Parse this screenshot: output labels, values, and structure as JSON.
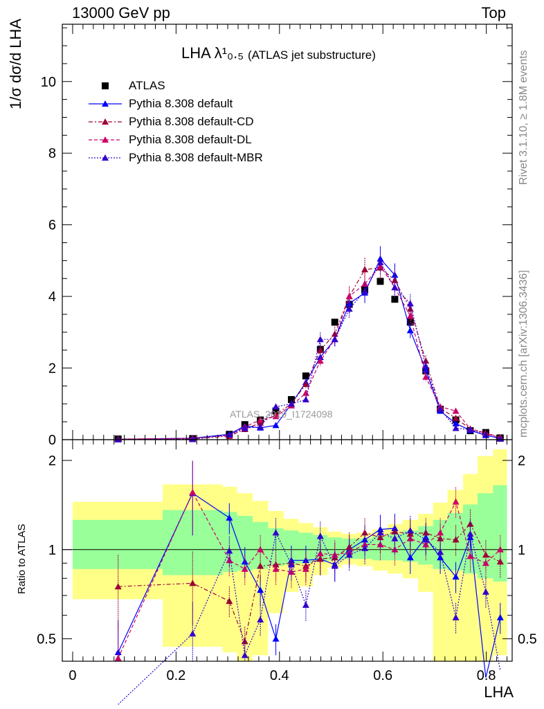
{
  "header": {
    "left": "13000 GeV pp",
    "right": "Top"
  },
  "side_text": {
    "rivet": "Rivet 3.1.10, ≥ 1.8M events",
    "mcplots": "mcplots.cern.ch [arXiv:1306.3436]"
  },
  "watermark": "ATLAS_2019_I1724098",
  "y_axis_label": "1/σ dσ/d LHA",
  "ratio_label": "Ratio to ATLAS",
  "title": {
    "main": "LHA λ¹₀.₅",
    "sub": "(ATLAS jet substructure)"
  },
  "colors": {
    "atlas": "#000000",
    "default": "#0000ff",
    "cd": "#990033",
    "dl": "#cc0066",
    "mbr": "#3300cc",
    "band_inner": "#99ff99",
    "band_outer": "#ffff88"
  },
  "chart_data": {
    "type": "scatter",
    "xlabel": "LHA",
    "x_range": [
      -0.02,
      0.85
    ],
    "main_ylim": [
      0,
      11.6
    ],
    "ratio_ylim": [
      0.42,
      2.35
    ],
    "ratio_yscale": "log",
    "x_ticks": [
      "0",
      "0.2",
      "0.4",
      "0.6",
      "0.8"
    ],
    "main_y_ticks": [
      "0",
      "2",
      "4",
      "6",
      "8",
      "10"
    ],
    "ratio_y_ticks": [
      "0.5",
      "1",
      "2"
    ],
    "legend_position": "top-left",
    "x": [
      0.088,
      0.232,
      0.303,
      0.333,
      0.363,
      0.393,
      0.423,
      0.451,
      0.479,
      0.507,
      0.535,
      0.565,
      0.595,
      0.623,
      0.653,
      0.683,
      0.711,
      0.741,
      0.769,
      0.799,
      0.827
    ],
    "series": [
      {
        "name": "ATLAS",
        "style": "square",
        "values": [
          0.02,
          0.03,
          0.15,
          0.42,
          0.55,
          0.8,
          1.12,
          1.78,
          2.52,
          3.28,
          3.78,
          4.18,
          4.42,
          3.92,
          3.28,
          1.92,
          0.85,
          0.55,
          0.25,
          0.2,
          0.05
        ],
        "ratio": [
          1,
          1,
          1,
          1,
          1,
          1,
          1,
          1,
          1,
          1,
          1,
          1,
          1,
          1,
          1,
          1,
          1,
          1,
          1,
          1,
          1
        ]
      },
      {
        "name": "Pythia 8.308 default",
        "style": "solid",
        "values": [
          0.01,
          0.04,
          0.15,
          0.38,
          0.33,
          0.4,
          1.0,
          1.6,
          2.3,
          2.8,
          3.8,
          4.1,
          5.05,
          4.6,
          3.05,
          1.95,
          0.8,
          0.45,
          0.26,
          0.12,
          0.04
        ],
        "ratio": [
          0.45,
          1.55,
          1.28,
          0.91,
          0.73,
          0.5,
          0.92,
          0.92,
          0.93,
          0.89,
          1.0,
          1.08,
          1.17,
          1.18,
          0.94,
          1.1,
          0.94,
          0.81,
          1.1,
          0.37,
          0.59
        ]
      },
      {
        "name": "Pythia 8.308 default-CD",
        "style": "dashdot",
        "values": [
          0.02,
          0.02,
          0.1,
          0.29,
          0.47,
          0.7,
          1.0,
          1.55,
          2.5,
          2.95,
          4.0,
          4.75,
          4.8,
          4.45,
          3.65,
          2.2,
          0.88,
          0.6,
          0.3,
          0.18,
          0.05
        ],
        "ratio": [
          0.75,
          0.77,
          0.67,
          0.49,
          0.88,
          0.89,
          0.9,
          0.88,
          0.93,
          0.94,
          1.02,
          1.14,
          1.1,
          1.15,
          1.13,
          1.14,
          1.09,
          1.08,
          1.22,
          0.96,
          0.91
        ]
      },
      {
        "name": "Pythia 8.308 default-DL",
        "style": "dashed",
        "values": [
          0.01,
          0.04,
          0.12,
          0.36,
          0.55,
          0.65,
          0.95,
          1.3,
          2.2,
          2.8,
          4.0,
          4.35,
          4.85,
          4.25,
          3.45,
          1.75,
          0.92,
          0.8,
          0.3,
          0.19,
          0.06
        ],
        "ratio": [
          0.43,
          1.56,
          0.92,
          0.86,
          1.0,
          0.86,
          0.84,
          0.86,
          0.97,
          0.96,
          0.98,
          1.04,
          1.04,
          1.0,
          1.09,
          1.04,
          1.14,
          1.45,
          0.95,
          0.9,
          1.0
        ]
      },
      {
        "name": "Pythia 8.308 default-MBR",
        "style": "dotted",
        "values": [
          0.0,
          0.01,
          0.14,
          0.32,
          0.36,
          0.92,
          1.0,
          1.12,
          2.8,
          2.8,
          3.65,
          4.15,
          4.95,
          4.25,
          3.8,
          2.05,
          0.85,
          0.32,
          0.28,
          0.14,
          0.02
        ],
        "ratio": [
          0.22,
          0.52,
          0.99,
          0.44,
          0.58,
          1.14,
          0.89,
          0.65,
          1.11,
          0.88,
          0.96,
          1.01,
          1.14,
          1.09,
          1.16,
          1.08,
          0.98,
          0.59,
          1.13,
          0.72,
          0.39
        ]
      }
    ],
    "error_bands": {
      "x_edges": [
        0.0,
        0.174,
        0.29,
        0.318,
        0.348,
        0.378,
        0.408,
        0.437,
        0.465,
        0.493,
        0.521,
        0.549,
        0.58,
        0.609,
        0.638,
        0.668,
        0.697,
        0.725,
        0.755,
        0.783,
        0.813,
        0.84
      ],
      "inner": [
        [
          0.86,
          1.26
        ],
        [
          0.82,
          1.36
        ],
        [
          0.84,
          1.34
        ],
        [
          0.85,
          1.3
        ],
        [
          0.86,
          1.24
        ],
        [
          0.88,
          1.18
        ],
        [
          0.89,
          1.16
        ],
        [
          0.9,
          1.14
        ],
        [
          0.91,
          1.12
        ],
        [
          0.92,
          1.1
        ],
        [
          0.93,
          1.09
        ],
        [
          0.93,
          1.09
        ],
        [
          0.92,
          1.11
        ],
        [
          0.92,
          1.13
        ],
        [
          0.91,
          1.16
        ],
        [
          0.89,
          1.2
        ],
        [
          0.86,
          1.26
        ],
        [
          0.85,
          1.33
        ],
        [
          0.83,
          1.42
        ],
        [
          0.8,
          1.55
        ],
        [
          0.78,
          1.65
        ]
      ],
      "outer": [
        [
          0.68,
          1.45
        ],
        [
          0.47,
          1.66
        ],
        [
          0.45,
          1.63
        ],
        [
          0.38,
          1.55
        ],
        [
          0.44,
          1.46
        ],
        [
          0.61,
          1.35
        ],
        [
          0.72,
          1.27
        ],
        [
          0.75,
          1.23
        ],
        [
          0.82,
          1.19
        ],
        [
          0.87,
          1.15
        ],
        [
          0.89,
          1.13
        ],
        [
          0.88,
          1.14
        ],
        [
          0.85,
          1.17
        ],
        [
          0.83,
          1.22
        ],
        [
          0.8,
          1.26
        ],
        [
          0.72,
          1.32
        ],
        [
          0.42,
          1.44
        ],
        [
          0.4,
          1.59
        ],
        [
          0.4,
          1.8
        ],
        [
          0.4,
          2.07
        ],
        [
          0.44,
          2.18
        ]
      ]
    }
  }
}
